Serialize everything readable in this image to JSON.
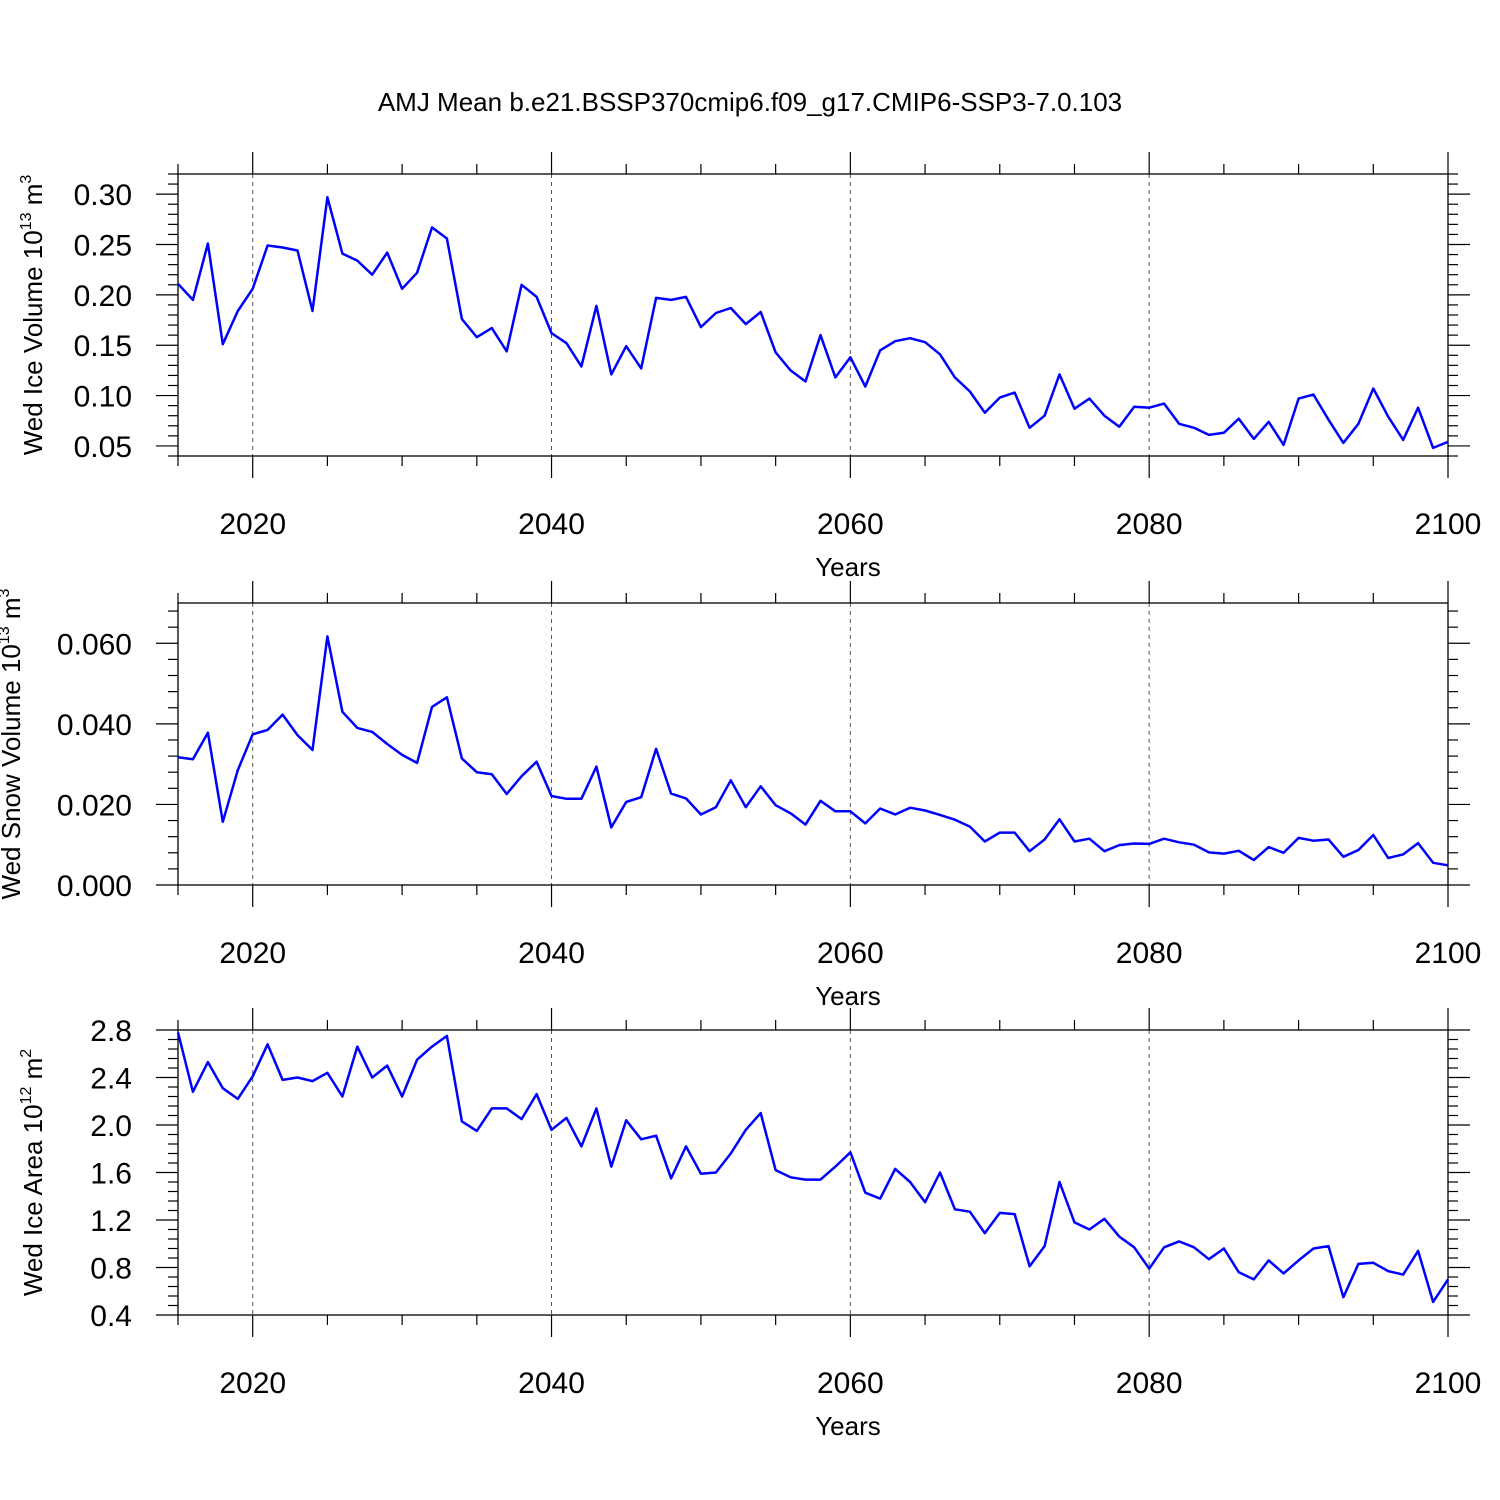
{
  "title": "AMJ Mean b.e21.BSSP370cmip6.f09_g17.CMIP6-SSP3-7.0.103",
  "colors": {
    "line": "#0000ff",
    "axis": "#000000",
    "grid": "#555555",
    "background": "#ffffff"
  },
  "chart_data": [
    {
      "type": "line",
      "name": "ice-volume",
      "ylabel": "Wed Ice Volume",
      "ylabel_unit_base": "10",
      "ylabel_unit_exp": "13",
      "ylabel_unit_tail": "m",
      "ylabel_unit_tail_exp": "3",
      "xlabel": "Years",
      "xlim": [
        2015,
        2100
      ],
      "ylim": [
        0.04,
        0.32
      ],
      "x_ticks": [
        "2020",
        "2040",
        "2060",
        "2080",
        "2100"
      ],
      "y_ticks": [
        "0.05",
        "0.10",
        "0.15",
        "0.20",
        "0.25",
        "0.30"
      ],
      "grid": "vertical dashed at major x ticks",
      "x_start": 2015,
      "series": [
        {
          "name": "Ice Volume",
          "values": [
            0.211,
            0.195,
            0.251,
            0.151,
            0.184,
            0.206,
            0.249,
            0.247,
            0.244,
            0.184,
            0.297,
            0.241,
            0.234,
            0.22,
            0.242,
            0.206,
            0.222,
            0.267,
            0.256,
            0.176,
            0.158,
            0.167,
            0.144,
            0.21,
            0.198,
            0.162,
            0.152,
            0.129,
            0.189,
            0.121,
            0.149,
            0.127,
            0.197,
            0.195,
            0.198,
            0.168,
            0.182,
            0.187,
            0.171,
            0.183,
            0.143,
            0.125,
            0.114,
            0.16,
            0.118,
            0.138,
            0.109,
            0.145,
            0.154,
            0.157,
            0.153,
            0.141,
            0.118,
            0.104,
            0.083,
            0.098,
            0.103,
            0.068,
            0.08,
            0.121,
            0.087,
            0.097,
            0.08,
            0.069,
            0.089,
            0.088,
            0.092,
            0.072,
            0.068,
            0.061,
            0.063,
            0.077,
            0.057,
            0.074,
            0.051,
            0.097,
            0.101,
            0.076,
            0.053,
            0.072,
            0.107,
            0.079,
            0.056,
            0.088,
            0.048,
            0.054
          ]
        }
      ]
    },
    {
      "type": "line",
      "name": "snow-volume",
      "ylabel": "Wed Snow Volume",
      "ylabel_unit_base": "10",
      "ylabel_unit_exp": "13",
      "ylabel_unit_tail": "m",
      "ylabel_unit_tail_exp": "3",
      "xlabel": "Years",
      "xlim": [
        2015,
        2100
      ],
      "ylim": [
        0.0,
        0.07
      ],
      "x_ticks": [
        "2020",
        "2040",
        "2060",
        "2080",
        "2100"
      ],
      "y_ticks": [
        "0.000",
        "0.020",
        "0.040",
        "0.060"
      ],
      "grid": "vertical dashed at major x ticks",
      "x_start": 2015,
      "series": [
        {
          "name": "Snow Volume",
          "values": [
            0.0317,
            0.0312,
            0.0378,
            0.0157,
            0.0285,
            0.0374,
            0.0385,
            0.0423,
            0.0372,
            0.0335,
            0.0617,
            0.043,
            0.039,
            0.038,
            0.035,
            0.0323,
            0.0303,
            0.0442,
            0.0466,
            0.0314,
            0.028,
            0.0275,
            0.0226,
            0.027,
            0.0306,
            0.0221,
            0.0214,
            0.0214,
            0.0294,
            0.0143,
            0.0206,
            0.0218,
            0.0338,
            0.0227,
            0.0215,
            0.0175,
            0.0193,
            0.026,
            0.0193,
            0.0245,
            0.0198,
            0.0178,
            0.015,
            0.0209,
            0.0183,
            0.0183,
            0.0153,
            0.019,
            0.0175,
            0.0192,
            0.0185,
            0.0174,
            0.0162,
            0.0145,
            0.0108,
            0.013,
            0.013,
            0.0084,
            0.0113,
            0.0163,
            0.0108,
            0.0115,
            0.0084,
            0.0099,
            0.0103,
            0.0102,
            0.0115,
            0.0106,
            0.01,
            0.0081,
            0.0078,
            0.0085,
            0.0062,
            0.0094,
            0.008,
            0.0117,
            0.011,
            0.0113,
            0.007,
            0.0087,
            0.0124,
            0.0067,
            0.0076,
            0.0104,
            0.0055,
            0.0049
          ]
        }
      ]
    },
    {
      "type": "line",
      "name": "ice-area",
      "ylabel": "Wed Ice Area",
      "ylabel_unit_base": "10",
      "ylabel_unit_exp": "12",
      "ylabel_unit_tail": "m",
      "ylabel_unit_tail_exp": "2",
      "xlabel": "Years",
      "xlim": [
        2015,
        2100
      ],
      "ylim": [
        0.4,
        2.8
      ],
      "x_ticks": [
        "2020",
        "2040",
        "2060",
        "2080",
        "2100"
      ],
      "y_ticks": [
        "0.4",
        "0.8",
        "1.2",
        "1.6",
        "2.0",
        "2.4",
        "2.8"
      ],
      "grid": "vertical dashed at major x ticks",
      "x_start": 2015,
      "series": [
        {
          "name": "Ice Area",
          "values": [
            2.78,
            2.28,
            2.53,
            2.31,
            2.22,
            2.41,
            2.68,
            2.38,
            2.4,
            2.37,
            2.44,
            2.24,
            2.66,
            2.4,
            2.5,
            2.24,
            2.55,
            2.66,
            2.75,
            2.03,
            1.95,
            2.14,
            2.14,
            2.05,
            2.26,
            1.96,
            2.06,
            1.82,
            2.14,
            1.65,
            2.04,
            1.88,
            1.91,
            1.55,
            1.82,
            1.59,
            1.6,
            1.76,
            1.96,
            2.1,
            1.62,
            1.56,
            1.54,
            1.54,
            1.65,
            1.77,
            1.43,
            1.38,
            1.63,
            1.52,
            1.35,
            1.6,
            1.29,
            1.27,
            1.09,
            1.26,
            1.25,
            0.81,
            0.98,
            1.52,
            1.18,
            1.12,
            1.21,
            1.06,
            0.97,
            0.79,
            0.97,
            1.02,
            0.97,
            0.87,
            0.96,
            0.76,
            0.7,
            0.86,
            0.75,
            0.86,
            0.96,
            0.98,
            0.55,
            0.83,
            0.84,
            0.77,
            0.74,
            0.94,
            0.51,
            0.7
          ]
        }
      ]
    }
  ]
}
